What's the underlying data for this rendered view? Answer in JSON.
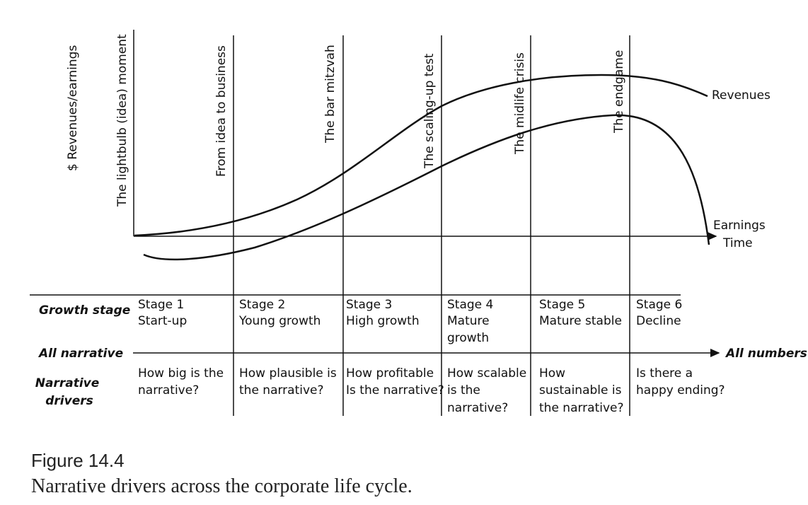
{
  "figure": {
    "y_axis_label": "$ Revenues/earnings",
    "milestones": [
      "The lightbulb (idea) moment",
      "From idea to business",
      "The bar mitzvah",
      "The scaling-up test",
      "The midlife crisis",
      "The endgame"
    ],
    "curve_labels": {
      "revenues": "Revenues",
      "earnings": "Earnings",
      "time": "Time"
    },
    "row_headers": {
      "growth_stage": "Growth stage",
      "all_narrative": "All narrative",
      "all_numbers": "All numbers",
      "narrative_drivers": [
        "Narrative",
        "drivers"
      ]
    },
    "stages": [
      {
        "stage": "Stage 1",
        "name": [
          "Start-up"
        ],
        "driver": [
          "How big is the",
          "narrative?"
        ]
      },
      {
        "stage": "Stage 2",
        "name": [
          "Young growth"
        ],
        "driver": [
          "How plausible is",
          "the narrative?"
        ]
      },
      {
        "stage": "Stage 3",
        "name": [
          "High growth"
        ],
        "driver": [
          "How profitable",
          "Is the narrative?"
        ]
      },
      {
        "stage": "Stage 4",
        "name": [
          "Mature",
          "growth"
        ],
        "driver": [
          "How scalable",
          "is the",
          "narrative?"
        ]
      },
      {
        "stage": "Stage 5",
        "name": [
          "Mature stable"
        ],
        "driver": [
          "How",
          "sustainable is",
          "the narrative?"
        ]
      },
      {
        "stage": "Stage 6",
        "name": [
          "Decline"
        ],
        "driver": [
          "Is there a",
          "happy ending?"
        ]
      }
    ]
  },
  "caption": {
    "number": "Figure 14.4",
    "title": "Narrative drivers across the corporate life cycle."
  }
}
